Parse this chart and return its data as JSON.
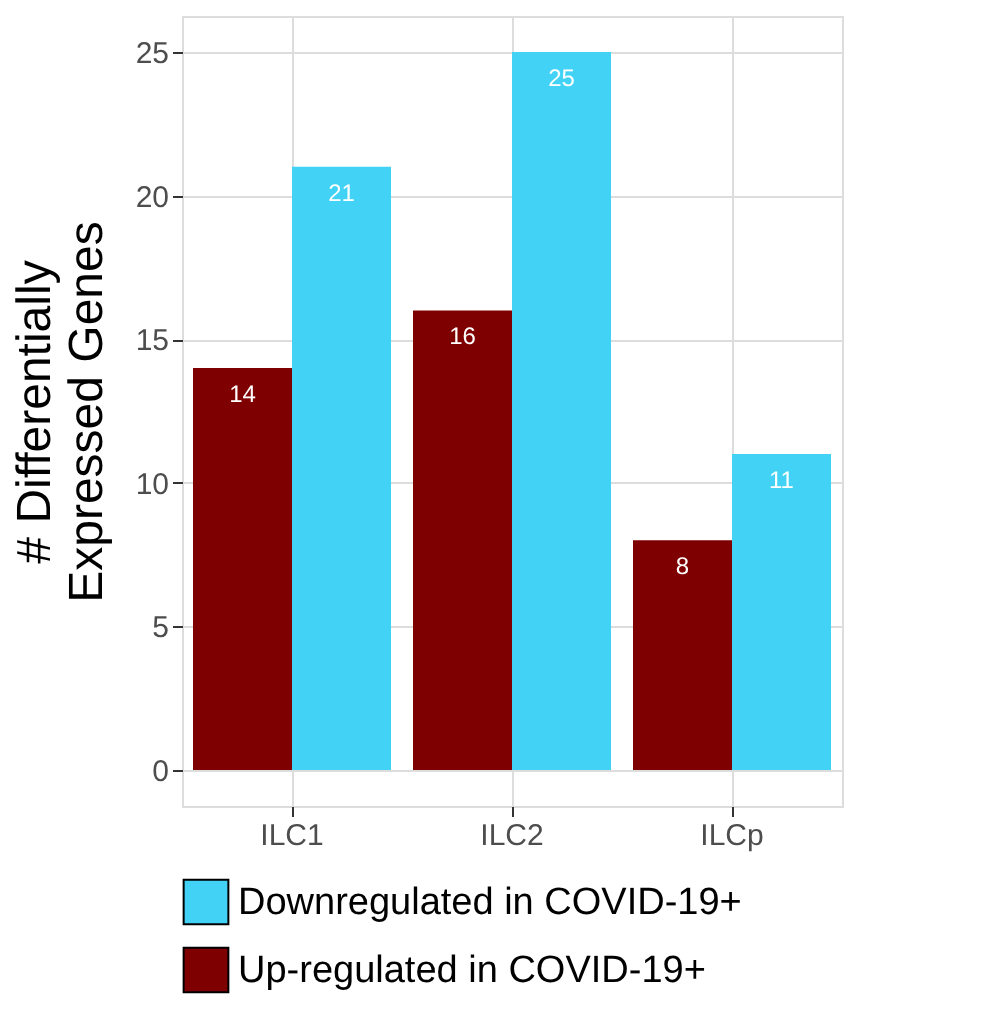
{
  "chart_data": {
    "type": "bar",
    "ylabel": "# Differentially\nExpressed Genes",
    "categories": [
      "ILC1",
      "ILC2",
      "ILCp"
    ],
    "series": [
      {
        "name": "Downregulated in COVID-19+",
        "color": "#42d2f5",
        "values": [
          21,
          25,
          11
        ]
      },
      {
        "name": "Up-regulated in COVID-19+",
        "color": "#7f0000",
        "values": [
          14,
          16,
          8
        ]
      }
    ],
    "ylim": [
      -1.25,
      26.25
    ],
    "yticks": [
      0,
      5,
      10,
      15,
      20,
      25
    ],
    "grid": true,
    "legend": "bottom",
    "data_labels": true
  }
}
